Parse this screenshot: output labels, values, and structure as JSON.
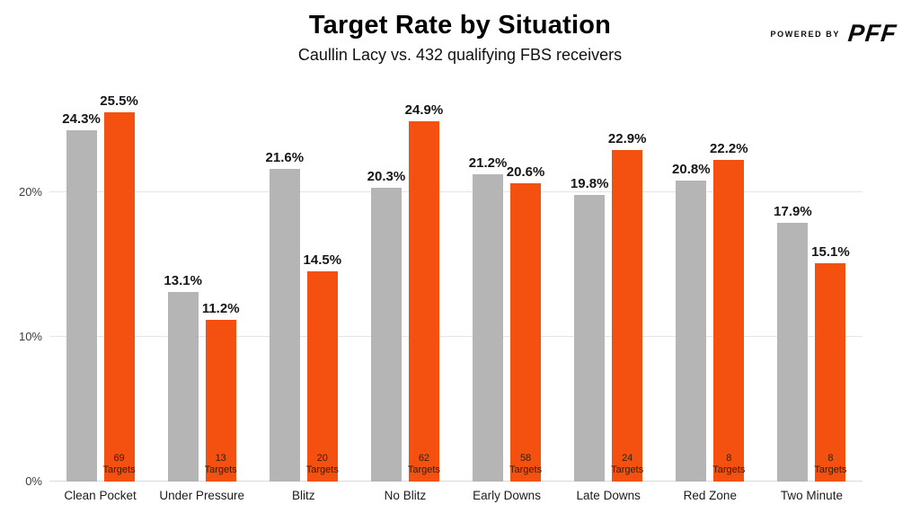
{
  "header": {
    "title": "Target Rate by Situation",
    "subtitle": "Caullin Lacy vs. 432 qualifying FBS receivers",
    "powered_by": "POWERED BY",
    "brand": "PFF"
  },
  "colors": {
    "gray_bar": "#b5b5b5",
    "orange_bar": "#f4500f",
    "gridline": "#e5e5e5",
    "text": "#161616"
  },
  "chart_data": {
    "type": "bar",
    "title": "Target Rate by Situation",
    "subtitle": "Caullin Lacy vs. 432 qualifying FBS receivers",
    "categories": [
      "Clean Pocket",
      "Under Pressure",
      "Blitz",
      "No Blitz",
      "Early Downs",
      "Late Downs",
      "Red Zone",
      "Two Minute"
    ],
    "series": [
      {
        "name": "gray",
        "color": "#b5b5b5",
        "values": [
          24.3,
          13.1,
          21.6,
          20.3,
          21.2,
          19.8,
          20.8,
          17.9
        ]
      },
      {
        "name": "orange",
        "color": "#f4500f",
        "values": [
          25.5,
          11.2,
          14.5,
          24.9,
          20.6,
          22.9,
          22.2,
          15.1
        ],
        "targets": [
          69,
          13,
          20,
          62,
          58,
          24,
          8,
          8
        ]
      }
    ],
    "value_suffix": "%",
    "targets_word": "Targets",
    "yticks": [
      {
        "label": "0%",
        "value": 0
      },
      {
        "label": "10%",
        "value": 10
      },
      {
        "label": "20%",
        "value": 20
      }
    ],
    "ylim": [
      0,
      27
    ],
    "grid": true,
    "legend": "none"
  }
}
